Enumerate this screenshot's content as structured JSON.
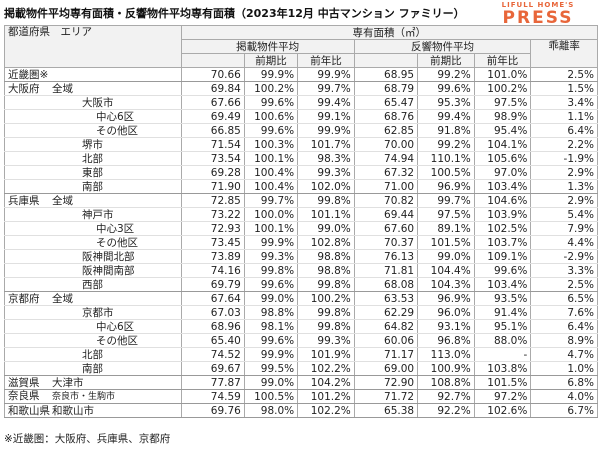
{
  "title": "掲載物件平均専有面積・反響物件平均専有面積（2023年12月 中古マンション ファミリー）",
  "logo": {
    "top": "LIFULL HOME'S",
    "main": "PRESS",
    "color": "#e8663a"
  },
  "header": {
    "area_col": "都道府県　エリア",
    "group": "専有面積（㎡）",
    "listing": "掲載物件平均",
    "response": "反響物件平均",
    "gap": "乖離率",
    "qoq": "前期比",
    "yoy": "前年比"
  },
  "note": "※近畿圏：大阪府、兵庫県、京都府",
  "chart_data": {
    "type": "table",
    "title": "掲載物件平均専有面積・反響物件平均専有面積（2023年12月 中古マンション ファミリー）",
    "columns": [
      "都道府県",
      "エリア",
      "掲載物件平均",
      "前期比",
      "前年比",
      "反響物件平均",
      "前期比",
      "前年比",
      "乖離率"
    ],
    "rows": [
      {
        "pref": "近畿圏※",
        "area": "",
        "indent": 0,
        "lv": "70.66",
        "lq": "99.9%",
        "ly": "99.9%",
        "rv": "68.95",
        "rq": "99.2%",
        "ry": "101.0%",
        "gap": "2.5%"
      },
      {
        "pref": "大阪府",
        "area": "全域",
        "indent": 0,
        "lv": "69.84",
        "lq": "100.2%",
        "ly": "99.7%",
        "rv": "68.79",
        "rq": "99.6%",
        "ry": "100.2%",
        "gap": "1.5%"
      },
      {
        "pref": "",
        "area": "大阪市",
        "indent": 1,
        "lv": "67.66",
        "lq": "99.6%",
        "ly": "99.4%",
        "rv": "65.47",
        "rq": "95.3%",
        "ry": "97.5%",
        "gap": "3.4%"
      },
      {
        "pref": "",
        "area": "中心6区",
        "indent": 2,
        "lv": "69.49",
        "lq": "100.6%",
        "ly": "99.1%",
        "rv": "68.76",
        "rq": "99.4%",
        "ry": "98.9%",
        "gap": "1.1%"
      },
      {
        "pref": "",
        "area": "その他区",
        "indent": 2,
        "lv": "66.85",
        "lq": "99.6%",
        "ly": "99.9%",
        "rv": "62.85",
        "rq": "91.8%",
        "ry": "95.4%",
        "gap": "6.4%"
      },
      {
        "pref": "",
        "area": "堺市",
        "indent": 1,
        "lv": "71.54",
        "lq": "100.3%",
        "ly": "101.7%",
        "rv": "70.00",
        "rq": "99.2%",
        "ry": "104.1%",
        "gap": "2.2%"
      },
      {
        "pref": "",
        "area": "北部",
        "indent": 1,
        "lv": "73.54",
        "lq": "100.1%",
        "ly": "98.3%",
        "rv": "74.94",
        "rq": "110.1%",
        "ry": "105.6%",
        "gap": "-1.9%"
      },
      {
        "pref": "",
        "area": "東部",
        "indent": 1,
        "lv": "69.28",
        "lq": "100.4%",
        "ly": "99.3%",
        "rv": "67.32",
        "rq": "100.5%",
        "ry": "97.0%",
        "gap": "2.9%"
      },
      {
        "pref": "",
        "area": "南部",
        "indent": 1,
        "lv": "71.90",
        "lq": "100.4%",
        "ly": "102.0%",
        "rv": "71.00",
        "rq": "96.9%",
        "ry": "103.4%",
        "gap": "1.3%"
      },
      {
        "pref": "兵庫県",
        "area": "全域",
        "indent": 0,
        "lv": "72.85",
        "lq": "99.7%",
        "ly": "99.8%",
        "rv": "70.82",
        "rq": "99.7%",
        "ry": "104.6%",
        "gap": "2.9%"
      },
      {
        "pref": "",
        "area": "神戸市",
        "indent": 1,
        "lv": "73.22",
        "lq": "100.0%",
        "ly": "101.1%",
        "rv": "69.44",
        "rq": "97.5%",
        "ry": "103.9%",
        "gap": "5.4%"
      },
      {
        "pref": "",
        "area": "中心3区",
        "indent": 2,
        "lv": "72.93",
        "lq": "100.1%",
        "ly": "99.0%",
        "rv": "67.60",
        "rq": "89.1%",
        "ry": "102.5%",
        "gap": "7.9%"
      },
      {
        "pref": "",
        "area": "その他区",
        "indent": 2,
        "lv": "73.45",
        "lq": "99.9%",
        "ly": "102.8%",
        "rv": "70.37",
        "rq": "101.5%",
        "ry": "103.7%",
        "gap": "4.4%"
      },
      {
        "pref": "",
        "area": "阪神間北部",
        "indent": 1,
        "lv": "73.89",
        "lq": "99.3%",
        "ly": "98.8%",
        "rv": "76.13",
        "rq": "99.0%",
        "ry": "109.1%",
        "gap": "-2.9%"
      },
      {
        "pref": "",
        "area": "阪神間南部",
        "indent": 1,
        "lv": "74.16",
        "lq": "99.8%",
        "ly": "98.8%",
        "rv": "71.81",
        "rq": "104.4%",
        "ry": "99.6%",
        "gap": "3.3%"
      },
      {
        "pref": "",
        "area": "西部",
        "indent": 1,
        "lv": "69.79",
        "lq": "99.6%",
        "ly": "99.8%",
        "rv": "68.08",
        "rq": "104.3%",
        "ry": "103.4%",
        "gap": "2.5%"
      },
      {
        "pref": "京都府",
        "area": "全域",
        "indent": 0,
        "lv": "67.64",
        "lq": "99.0%",
        "ly": "100.2%",
        "rv": "63.53",
        "rq": "96.9%",
        "ry": "93.5%",
        "gap": "6.5%"
      },
      {
        "pref": "",
        "area": "京都市",
        "indent": 1,
        "lv": "67.03",
        "lq": "98.8%",
        "ly": "99.8%",
        "rv": "62.29",
        "rq": "96.0%",
        "ry": "91.4%",
        "gap": "7.6%"
      },
      {
        "pref": "",
        "area": "中心6区",
        "indent": 2,
        "lv": "68.96",
        "lq": "98.1%",
        "ly": "99.8%",
        "rv": "64.82",
        "rq": "93.1%",
        "ry": "95.1%",
        "gap": "6.4%"
      },
      {
        "pref": "",
        "area": "その他区",
        "indent": 2,
        "lv": "65.40",
        "lq": "99.6%",
        "ly": "99.3%",
        "rv": "60.06",
        "rq": "96.8%",
        "ry": "88.0%",
        "gap": "8.9%"
      },
      {
        "pref": "",
        "area": "北部",
        "indent": 1,
        "lv": "74.52",
        "lq": "99.9%",
        "ly": "101.9%",
        "rv": "71.17",
        "rq": "113.0%",
        "ry": "-",
        "gap": "4.7%"
      },
      {
        "pref": "",
        "area": "南部",
        "indent": 1,
        "lv": "69.67",
        "lq": "99.5%",
        "ly": "102.2%",
        "rv": "69.00",
        "rq": "100.9%",
        "ry": "103.8%",
        "gap": "1.0%"
      },
      {
        "pref": "滋賀県",
        "area": "大津市",
        "indent": 0,
        "lv": "77.87",
        "lq": "99.0%",
        "ly": "104.2%",
        "rv": "72.90",
        "rq": "108.8%",
        "ry": "101.5%",
        "gap": "6.8%"
      },
      {
        "pref": "奈良県",
        "area": "奈良市・生駒市",
        "indent": 0,
        "lv": "74.59",
        "lq": "100.5%",
        "ly": "101.2%",
        "rv": "71.72",
        "rq": "92.7%",
        "ry": "97.2%",
        "gap": "4.0%"
      },
      {
        "pref": "和歌山県",
        "area": "和歌山市",
        "indent": 0,
        "lv": "69.76",
        "lq": "98.0%",
        "ly": "102.2%",
        "rv": "65.38",
        "rq": "92.2%",
        "ry": "102.6%",
        "gap": "6.7%"
      }
    ]
  }
}
